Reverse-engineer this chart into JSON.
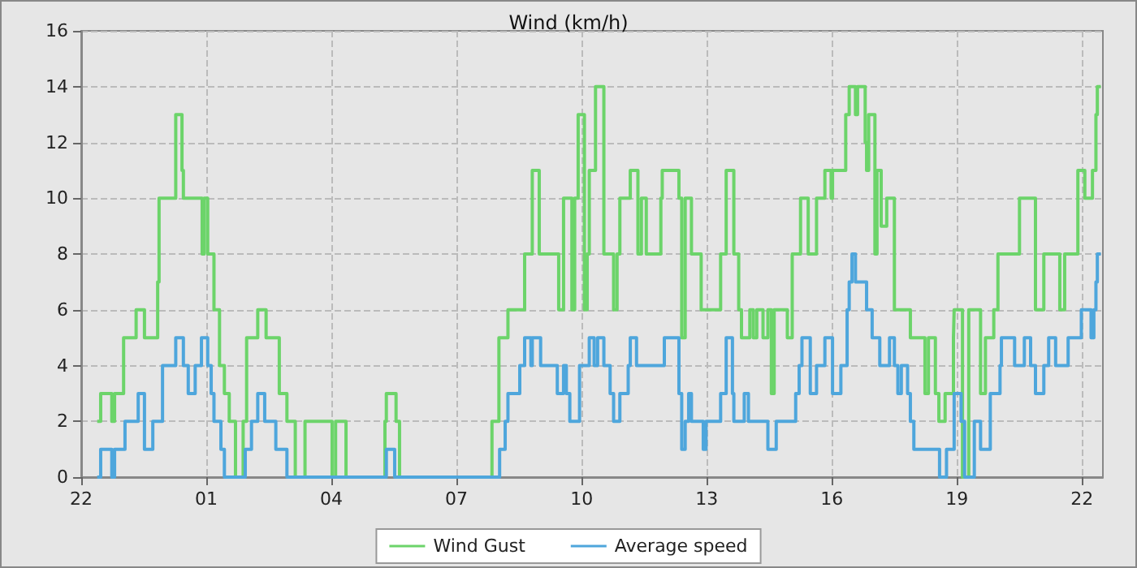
{
  "chart_data": {
    "type": "step",
    "title": "Wind (km/h)",
    "xlim": [
      "--01-01T22:00",
      "--01-02T22:30"
    ],
    "xticks": [
      {
        "value": "--01-01T22:00",
        "label": "22"
      },
      {
        "value": "--01-02T01:00",
        "label": "01"
      },
      {
        "value": "--01-02T04:00",
        "label": "04"
      },
      {
        "value": "--01-02T07:00",
        "label": "07"
      },
      {
        "value": "--01-02T10:00",
        "label": "10"
      },
      {
        "value": "--01-02T13:00",
        "label": "13"
      },
      {
        "value": "--01-02T16:00",
        "label": "16"
      },
      {
        "value": "--01-02T19:00",
        "label": "19"
      },
      {
        "value": "--01-02T22:00",
        "label": "22"
      }
    ],
    "ylim": [
      0,
      16
    ],
    "yticks": [
      0,
      2,
      4,
      6,
      8,
      10,
      12,
      14,
      16
    ],
    "grid": true,
    "legend": "bottom",
    "marker": "none",
    "line_style": "solid",
    "series": [
      {
        "name": "Wind Gust",
        "color": "#6cd46a",
        "x": [
          "--01-01T22:23",
          "--01-01T22:28",
          "--01-01T22:44",
          "--01-01T22:48",
          "--01-01T23:01",
          "--01-01T23:19",
          "--01-01T23:31",
          "--01-01T23:50",
          "--01-01T23:52",
          "--01-02T00:16",
          "--01-02T00:25",
          "--01-02T00:27",
          "--01-02T00:54",
          "--01-02T00:57",
          "--01-02T01:02",
          "--01-02T01:11",
          "--01-02T01:19",
          "--01-02T01:26",
          "--01-02T01:33",
          "--01-02T01:42",
          "--01-02T01:53",
          "--01-02T01:58",
          "--01-02T02:14",
          "--01-02T02:26",
          "--01-02T02:45",
          "--01-02T02:56",
          "--01-02T03:08",
          "--01-02T03:22",
          "--01-02T04:01",
          "--01-02T04:06",
          "--01-02T04:21",
          "--01-02T05:17",
          "--01-02T05:19",
          "--01-02T05:33",
          "--01-02T05:38",
          "--01-02T07:51",
          "--01-02T08:01",
          "--01-02T08:14",
          "--01-02T08:38",
          "--01-02T08:49",
          "--01-02T08:59",
          "--01-02T09:27",
          "--01-02T09:34",
          "--01-02T09:46",
          "--01-02T09:50",
          "--01-02T09:55",
          "--01-02T10:04",
          "--01-02T10:08",
          "--01-02T10:11",
          "--01-02T10:20",
          "--01-02T10:32",
          "--01-02T10:46",
          "--01-02T10:51",
          "--01-02T10:55",
          "--01-02T11:10",
          "--01-02T11:21",
          "--01-02T11:26",
          "--01-02T11:33",
          "--01-02T11:54",
          "--01-02T11:56",
          "--01-02T12:20",
          "--01-02T12:24",
          "--01-02T12:29",
          "--01-02T12:38",
          "--01-02T12:52",
          "--01-02T13:20",
          "--01-02T13:28",
          "--01-02T13:39",
          "--01-02T13:46",
          "--01-02T13:50",
          "--01-02T14:02",
          "--01-02T14:07",
          "--01-02T14:12",
          "--01-02T14:21",
          "--01-02T14:28",
          "--01-02T14:33",
          "--01-02T14:37",
          "--01-02T14:56",
          "--01-02T15:03",
          "--01-02T15:15",
          "--01-02T15:26",
          "--01-02T15:38",
          "--01-02T15:50",
          "--01-02T15:59",
          "--01-02T16:01",
          "--01-02T16:20",
          "--01-02T16:25",
          "--01-02T16:34",
          "--01-02T16:37",
          "--01-02T16:48",
          "--01-02T16:50",
          "--01-02T16:53",
          "--01-02T17:02",
          "--01-02T17:05",
          "--01-02T17:11",
          "--01-02T17:19",
          "--01-02T17:30",
          "--01-02T17:53",
          "--01-02T18:14",
          "--01-02T18:19",
          "--01-02T18:29",
          "--01-02T18:34",
          "--01-02T18:43",
          "--01-02T18:55",
          "--01-02T18:56",
          "--01-02T19:08",
          "--01-02T19:17",
          "--01-02T19:34",
          "--01-02T19:41",
          "--01-02T19:53",
          "--01-02T19:59",
          "--01-02T20:30",
          "--01-02T20:53",
          "--01-02T21:05",
          "--01-02T21:28",
          "--01-02T21:35",
          "--01-02T21:54",
          "--01-02T22:04",
          "--01-02T22:15",
          "--01-02T22:20",
          "--01-02T22:22",
          "--01-02T22:27"
        ],
        "values": [
          2,
          3,
          2,
          3,
          5,
          6,
          5,
          7,
          10,
          13,
          11,
          10,
          8,
          10,
          8,
          6,
          4,
          3,
          2,
          0,
          2,
          5,
          6,
          5,
          3,
          2,
          0,
          2,
          0,
          2,
          0,
          2,
          3,
          2,
          0,
          2,
          5,
          6,
          8,
          11,
          8,
          6,
          10,
          6,
          10,
          13,
          6,
          8,
          11,
          14,
          8,
          6,
          8,
          10,
          11,
          8,
          10,
          8,
          10,
          11,
          10,
          5,
          10,
          8,
          6,
          8,
          11,
          8,
          6,
          5,
          6,
          5,
          6,
          5,
          6,
          3,
          6,
          5,
          8,
          10,
          8,
          10,
          11,
          10,
          11,
          13,
          14,
          13,
          14,
          12,
          11,
          13,
          8,
          11,
          9,
          10,
          6,
          5,
          3,
          5,
          3,
          2,
          3,
          5,
          6,
          0,
          6,
          3,
          5,
          6,
          8,
          10,
          6,
          8,
          6,
          8,
          11,
          10,
          11,
          13,
          14,
          14
        ]
      },
      {
        "name": "Average speed",
        "color": "#4ea6dc",
        "x": [
          "--01-01T22:23",
          "--01-01T22:28",
          "--01-01T22:44",
          "--01-01T22:48",
          "--01-01T23:03",
          "--01-01T23:22",
          "--01-01T23:31",
          "--01-01T23:43",
          "--01-01T23:57",
          "--01-02T00:16",
          "--01-02T00:27",
          "--01-02T00:34",
          "--01-02T00:44",
          "--01-02T00:53",
          "--01-02T01:02",
          "--01-02T01:07",
          "--01-02T01:11",
          "--01-02T01:21",
          "--01-02T01:26",
          "--01-02T01:56",
          "--01-02T02:05",
          "--01-02T02:14",
          "--01-02T02:24",
          "--01-02T02:40",
          "--01-02T02:56",
          "--01-02T05:19",
          "--01-02T05:31",
          "--01-02T08:02",
          "--01-02T08:10",
          "--01-02T08:14",
          "--01-02T08:31",
          "--01-02T08:38",
          "--01-02T08:47",
          "--01-02T08:49",
          "--01-02T09:01",
          "--01-02T09:25",
          "--01-02T09:34",
          "--01-02T09:38",
          "--01-02T09:43",
          "--01-02T09:57",
          "--01-02T10:11",
          "--01-02T10:18",
          "--01-02T10:23",
          "--01-02T10:32",
          "--01-02T10:41",
          "--01-02T10:46",
          "--01-02T10:55",
          "--01-02T11:07",
          "--01-02T11:10",
          "--01-02T11:19",
          "--01-02T11:59",
          "--01-02T12:20",
          "--01-02T12:24",
          "--01-02T12:29",
          "--01-02T12:34",
          "--01-02T12:38",
          "--01-02T12:55",
          "--01-02T12:59",
          "--01-02T13:20",
          "--01-02T13:28",
          "--01-02T13:37",
          "--01-02T13:39",
          "--01-02T13:54",
          "--01-02T14:00",
          "--01-02T14:28",
          "--01-02T14:40",
          "--01-02T15:08",
          "--01-02T15:13",
          "--01-02T15:17",
          "--01-02T15:29",
          "--01-02T15:38",
          "--01-02T15:50",
          "--01-02T16:01",
          "--01-02T16:13",
          "--01-02T16:22",
          "--01-02T16:25",
          "--01-02T16:29",
          "--01-02T16:34",
          "--01-02T16:50",
          "--01-02T16:58",
          "--01-02T17:09",
          "--01-02T17:23",
          "--01-02T17:30",
          "--01-02T17:35",
          "--01-02T17:40",
          "--01-02T17:49",
          "--01-02T17:53",
          "--01-02T17:58",
          "--01-02T18:35",
          "--01-02T18:45",
          "--01-02T18:56",
          "--01-02T19:06",
          "--01-02T19:11",
          "--01-02T19:25",
          "--01-02T19:34",
          "--01-02T19:48",
          "--01-02T20:02",
          "--01-02T20:04",
          "--01-02T20:23",
          "--01-02T20:37",
          "--01-02T20:46",
          "--01-02T20:53",
          "--01-02T21:05",
          "--01-02T21:12",
          "--01-02T21:22",
          "--01-02T21:40",
          "--01-02T21:59",
          "--01-02T22:13",
          "--01-02T22:17",
          "--01-02T22:20",
          "--01-02T22:22",
          "--01-02T22:27"
        ],
        "values": [
          0,
          1,
          0,
          1,
          2,
          3,
          1,
          2,
          4,
          5,
          4,
          3,
          4,
          5,
          4,
          3,
          2,
          1,
          0,
          1,
          2,
          3,
          2,
          1,
          0,
          1,
          0,
          1,
          2,
          3,
          4,
          5,
          4,
          5,
          4,
          3,
          4,
          3,
          2,
          4,
          5,
          4,
          5,
          4,
          3,
          2,
          3,
          4,
          5,
          4,
          5,
          3,
          1,
          2,
          3,
          2,
          1,
          2,
          3,
          5,
          3,
          2,
          3,
          2,
          1,
          2,
          3,
          4,
          5,
          3,
          4,
          5,
          3,
          4,
          6,
          7,
          8,
          7,
          6,
          5,
          4,
          5,
          4,
          3,
          4,
          3,
          2,
          1,
          0,
          1,
          3,
          2,
          0,
          2,
          1,
          3,
          4,
          5,
          4,
          5,
          4,
          3,
          4,
          5,
          4,
          5,
          6,
          5,
          6,
          7,
          8,
          8
        ]
      }
    ]
  }
}
